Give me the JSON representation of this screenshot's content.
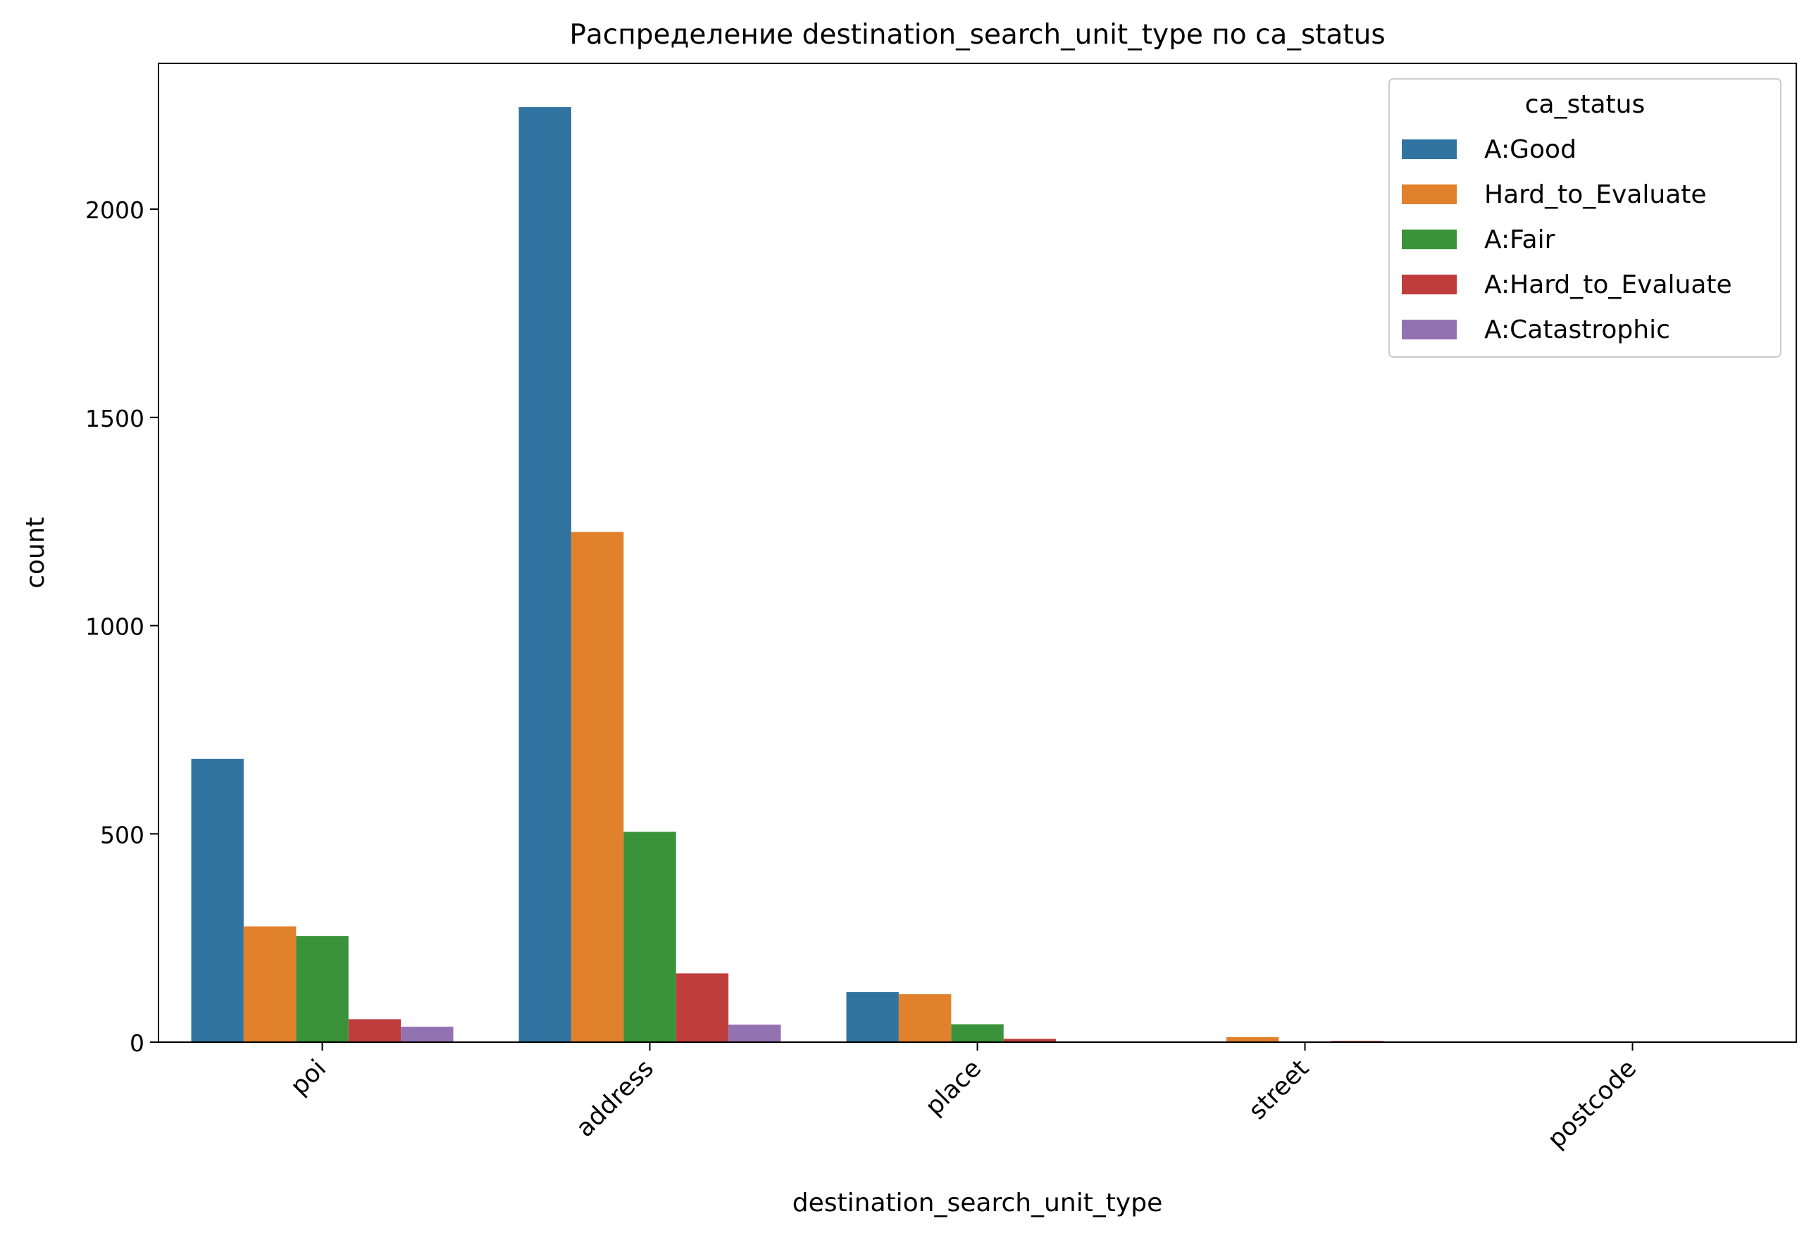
{
  "chart_data": {
    "type": "bar",
    "title": "Распределение destination_search_unit_type по ca_status",
    "xlabel": "destination_search_unit_type",
    "ylabel": "count",
    "categories": [
      "poi",
      "address",
      "place",
      "street",
      "postcode"
    ],
    "ylim": [
      0,
      2350
    ],
    "yticks": [
      0,
      500,
      1000,
      1500,
      2000
    ],
    "grid": false,
    "legend": {
      "title": "ca_status",
      "placement": "top-right"
    },
    "series": [
      {
        "name": "A:Good",
        "color": "#3274a1",
        "values": [
          680,
          2245,
          120,
          0,
          0
        ]
      },
      {
        "name": "Hard_to_Evaluate",
        "color": "#e1812c",
        "values": [
          278,
          1225,
          115,
          12,
          0
        ]
      },
      {
        "name": "A:Fair",
        "color": "#3a923a",
        "values": [
          255,
          505,
          43,
          0,
          0
        ]
      },
      {
        "name": "A:Hard_to_Evaluate",
        "color": "#c03d3e",
        "values": [
          55,
          165,
          8,
          3,
          0
        ]
      },
      {
        "name": "A:Catastrophic",
        "color": "#9372b2",
        "values": [
          37,
          42,
          0,
          0,
          0
        ]
      }
    ]
  }
}
